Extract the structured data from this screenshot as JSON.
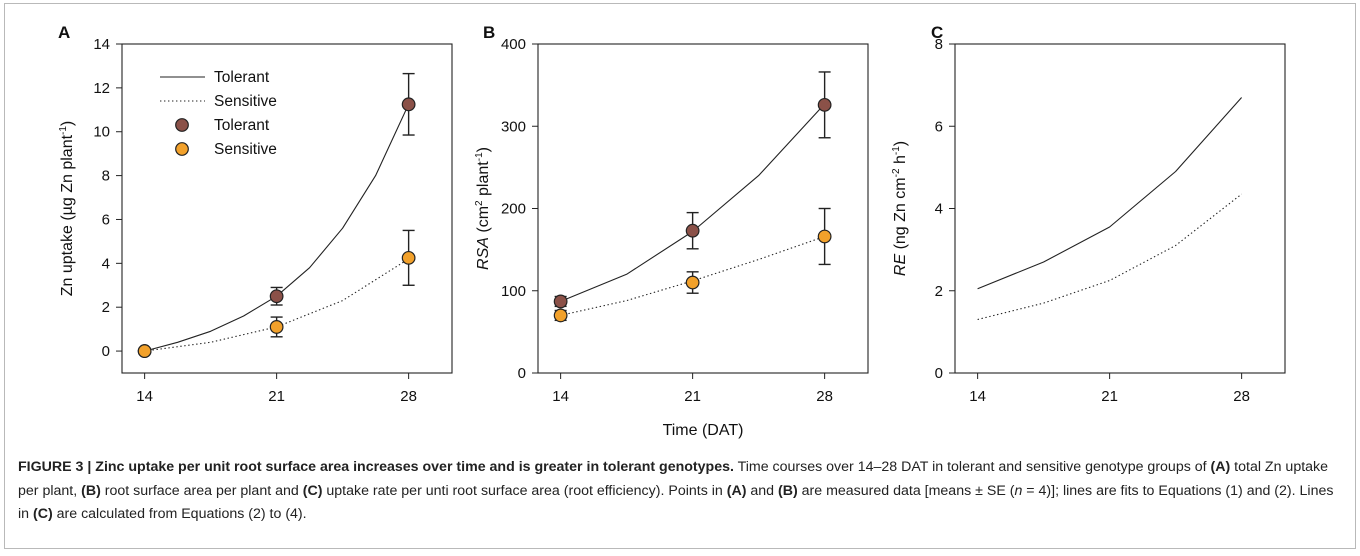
{
  "chart_data": [
    {
      "type": "line",
      "panel_label": "A",
      "ylabel_parts": [
        "Zn uptake (µg Zn plant",
        "-1",
        ")"
      ],
      "x_ticks": [
        "14",
        "21",
        "28"
      ],
      "y_ticks": [
        "0",
        "2",
        "4",
        "6",
        "8",
        "10",
        "12",
        "14"
      ],
      "xlim": [
        12.8,
        30.3
      ],
      "ylim": [
        -1,
        14
      ],
      "legend": {
        "position": "top-left",
        "entries": [
          {
            "label": "Tolerant",
            "kind": "solid-line"
          },
          {
            "label": "Sensitive",
            "kind": "dotted-line"
          },
          {
            "label": "Tolerant",
            "kind": "marker",
            "color": "#8B5148"
          },
          {
            "label": "Sensitive",
            "kind": "marker",
            "color": "#F2A12B"
          }
        ]
      },
      "lines": [
        {
          "name": "Tolerant",
          "style": "solid",
          "x": [
            14,
            15.75,
            17.5,
            19.25,
            21,
            22.75,
            24.5,
            26.25,
            28
          ],
          "y": [
            0,
            0.4,
            0.9,
            1.6,
            2.5,
            3.8,
            5.6,
            8.0,
            11.25
          ]
        },
        {
          "name": "Sensitive",
          "style": "dotted",
          "x": [
            14,
            17.5,
            21,
            24.5,
            28
          ],
          "y": [
            0,
            0.4,
            1.1,
            2.3,
            4.2
          ]
        }
      ],
      "points": [
        {
          "name": "Tolerant",
          "color": "#8B5148",
          "x": [
            14,
            21,
            28
          ],
          "y": [
            0,
            2.5,
            11.25
          ],
          "err": [
            0.05,
            0.4,
            1.4
          ]
        },
        {
          "name": "Sensitive",
          "color": "#F2A12B",
          "x": [
            14,
            21,
            28
          ],
          "y": [
            0,
            1.1,
            4.25
          ],
          "err": [
            0.05,
            0.45,
            1.25
          ]
        }
      ]
    },
    {
      "type": "line",
      "panel_label": "B",
      "ylabel_parts": [
        "RSA",
        " (cm",
        "2",
        " plant",
        "-1",
        ")"
      ],
      "xlabel": "Time (DAT)",
      "x_ticks": [
        "14",
        "21",
        "28"
      ],
      "y_ticks": [
        "0",
        "100",
        "200",
        "300",
        "400"
      ],
      "xlim": [
        12.8,
        30.3
      ],
      "ylim": [
        0,
        400
      ],
      "lines": [
        {
          "name": "Tolerant",
          "style": "solid",
          "x": [
            14,
            17.5,
            21,
            24.5,
            28
          ],
          "y": [
            87,
            120,
            172,
            240,
            327
          ]
        },
        {
          "name": "Sensitive",
          "style": "dotted",
          "x": [
            14,
            17.5,
            21,
            24.5,
            28
          ],
          "y": [
            70,
            88,
            112,
            138,
            166
          ]
        }
      ],
      "points": [
        {
          "name": "Tolerant",
          "color": "#8B5148",
          "x": [
            14,
            21,
            28
          ],
          "y": [
            87,
            173,
            326
          ],
          "err": [
            6,
            22,
            40
          ]
        },
        {
          "name": "Sensitive",
          "color": "#F2A12B",
          "x": [
            14,
            21,
            28
          ],
          "y": [
            70,
            110,
            166
          ],
          "err": [
            6,
            13,
            34
          ]
        }
      ]
    },
    {
      "type": "line",
      "panel_label": "C",
      "ylabel_parts": [
        "RE",
        " (ng Zn cm",
        "-2",
        " h",
        "-1",
        ")"
      ],
      "x_ticks": [
        "14",
        "21",
        "28"
      ],
      "y_ticks": [
        "0",
        "2",
        "4",
        "6",
        "8"
      ],
      "xlim": [
        12.8,
        30.3
      ],
      "ylim": [
        0,
        8
      ],
      "lines": [
        {
          "name": "Tolerant",
          "style": "solid",
          "x": [
            14,
            17.5,
            21,
            24.5,
            28
          ],
          "y": [
            2.05,
            2.7,
            3.55,
            4.9,
            6.7
          ]
        },
        {
          "name": "Sensitive",
          "style": "dotted",
          "x": [
            14,
            17.5,
            21,
            24.5,
            28
          ],
          "y": [
            1.3,
            1.7,
            2.25,
            3.1,
            4.35
          ]
        }
      ],
      "points": []
    }
  ],
  "caption": {
    "title": "FIGURE 3 | Zinc uptake per unit root surface area increases over time and is greater in tolerant genotypes.",
    "parts": [
      {
        "t": " Time courses over 14–28 DAT in tolerant and sensitive genotype groups of ",
        "b": false
      },
      {
        "t": "(A)",
        "b": true
      },
      {
        "t": " total Zn uptake per plant, ",
        "b": false
      },
      {
        "t": "(B)",
        "b": true
      },
      {
        "t": " root surface area per plant and ",
        "b": false
      },
      {
        "t": "(C)",
        "b": true
      },
      {
        "t": " uptake rate per unti root surface area (root efficiency). Points in ",
        "b": false
      },
      {
        "t": "(A)",
        "b": true
      },
      {
        "t": " and ",
        "b": false
      },
      {
        "t": "(B)",
        "b": true
      },
      {
        "t": " are measured data [means ± SE (",
        "b": false
      },
      {
        "t": "n",
        "b": false,
        "i": true
      },
      {
        "t": " = 4)]; lines are fits to Equations (1) and (2). Lines in ",
        "b": false
      },
      {
        "t": "(C)",
        "b": true
      },
      {
        "t": " are calculated from Equations (2) to (4).",
        "b": false
      }
    ]
  }
}
